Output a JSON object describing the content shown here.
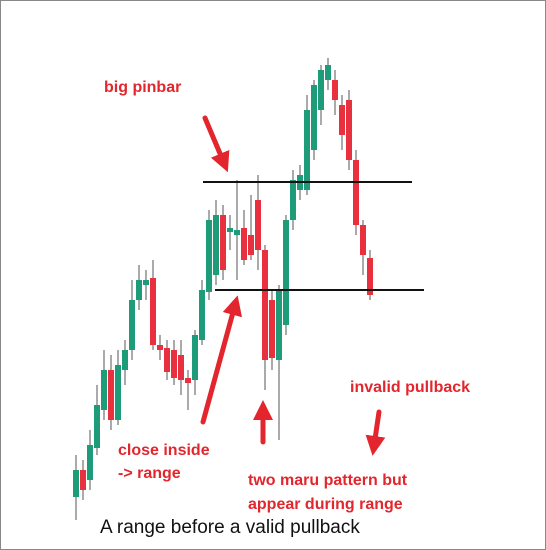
{
  "chart_data": {
    "type": "candlestick",
    "caption": "A range before a valid pullback",
    "annotations": [
      "big pinbar",
      "close inside",
      "-> range",
      "two maru pattern but",
      "appear during range",
      "invalid pullback"
    ],
    "up_color": "#1e9b78",
    "down_color": "#e8303f",
    "level_color": "#111111",
    "ylim": [
      0,
      100
    ],
    "levels": [
      71.6,
      50
    ],
    "open": [
      8.6,
      14,
      12,
      18.4,
      26,
      34,
      24,
      34,
      38,
      48,
      51,
      52.4,
      39,
      38.4,
      38,
      37,
      32.4,
      32,
      40,
      49.6,
      53,
      65,
      61.6,
      61,
      62.4,
      61,
      68,
      58,
      48,
      36,
      43,
      64,
      70,
      70,
      78,
      86,
      92,
      92,
      87,
      88,
      76,
      63,
      56.4
    ],
    "high": [
      17,
      16,
      22,
      31,
      38,
      37,
      38,
      40,
      52,
      55,
      54,
      56,
      41,
      40,
      40,
      40,
      34,
      42,
      52,
      66,
      68,
      67,
      65,
      72,
      66,
      69,
      73,
      59,
      50,
      51,
      65,
      74,
      75,
      89,
      92,
      95,
      96.4,
      94,
      89,
      90,
      78,
      64,
      58
    ],
    "low": [
      4,
      8,
      10,
      17,
      24,
      22,
      23,
      31,
      36,
      46,
      48,
      38,
      36,
      32,
      31,
      29,
      26,
      29,
      39,
      48,
      51,
      52,
      58,
      52,
      55,
      56,
      54,
      30,
      34,
      20,
      41,
      62,
      68,
      69,
      76,
      83,
      90,
      85,
      78,
      74,
      61,
      53,
      48
    ],
    "close": [
      14,
      10,
      19,
      27,
      34,
      24,
      35,
      38,
      48,
      52,
      52,
      39,
      38,
      33.6,
      32.4,
      32,
      31.4,
      41,
      50,
      64,
      65,
      54,
      62.4,
      62,
      56,
      57,
      58,
      36,
      36.4,
      50,
      64,
      72,
      73,
      86,
      91,
      94,
      95,
      88,
      81,
      76,
      63,
      57,
      49
    ]
  }
}
